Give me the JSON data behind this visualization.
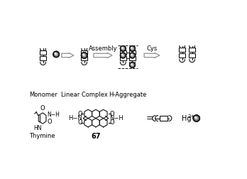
{
  "background_color": "#ffffff",
  "line_color": "#111111",
  "arrow_color": "#aaaaaa",
  "text_color": "#000000",
  "monomer_label": "Monomer",
  "linear_label": "Linear Complex",
  "aggregate_label": "H-Aggregate",
  "thymine_label": "Thymine",
  "compound_label": "67",
  "assembly_label": "Assembly",
  "cys_label": "Cys",
  "fig_width": 3.48,
  "fig_height": 2.52,
  "dpi": 100
}
